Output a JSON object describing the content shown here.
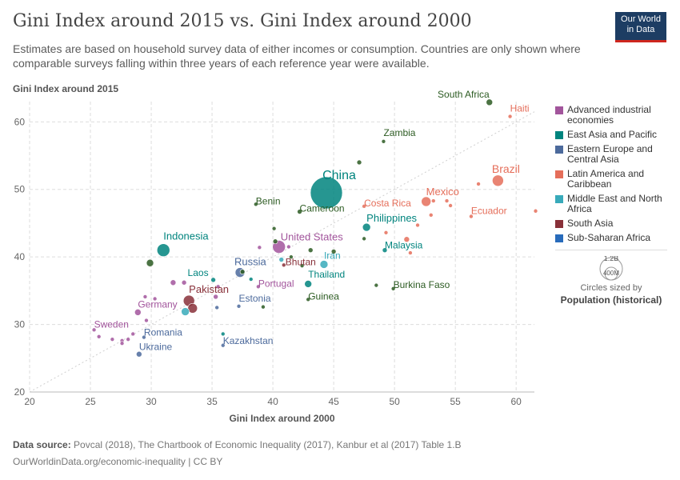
{
  "header": {
    "title": "Gini Index around 2015 vs. Gini Index around 2000",
    "subtitle": "Estimates are based on household survey data of either incomes or consumption. Countries are only shown where comparable surveys falling within three years of each reference year were available.",
    "logo_line1": "Our World",
    "logo_line2": "in Data"
  },
  "legend": {
    "items": [
      {
        "label": "Advanced industrial economies",
        "color": "#a2559c"
      },
      {
        "label": "East Asia and Pacific",
        "color": "#00847e"
      },
      {
        "label": "Eastern Europe and Central Asia",
        "color": "#4c6a9c"
      },
      {
        "label": "Latin America and Caribbean",
        "color": "#e56e5a"
      },
      {
        "label": "Middle East and North Africa",
        "color": "#38aaba"
      },
      {
        "label": "South Asia",
        "color": "#883039"
      },
      {
        "label": "Sub-Saharan Africa",
        "color": "#286bbb"
      }
    ],
    "size_big": "1.2B",
    "size_small": "400M",
    "size_caption": "Circles sized by",
    "size_metric": "Population (historical)"
  },
  "footer": {
    "source_label": "Data source:",
    "source_text": "Povcal (2018), The Chartbook of Economic Inequality (2017), Kanbur et al (2017) Table 1.B",
    "url": "OurWorldinData.org/economic-inequality | CC BY"
  },
  "chart_data": {
    "type": "scatter",
    "title": "Gini Index around 2015 vs. Gini Index around 2000",
    "xlabel": "Gini Index around 2000",
    "ylabel": "Gini Index around 2015",
    "xlim": [
      20,
      61.5
    ],
    "ylim": [
      20,
      63
    ],
    "xticks": [
      20,
      25,
      30,
      35,
      40,
      45,
      50,
      55,
      60
    ],
    "yticks": [
      20,
      30,
      40,
      50,
      60
    ],
    "diagonal": true,
    "region_colors": {
      "adv": "#a2559c",
      "eap": "#00847e",
      "eeca": "#4c6a9c",
      "lac": "#e56e5a",
      "mena": "#38aaba",
      "sa": "#883039",
      "ssa": "#2c5b22"
    },
    "points": [
      {
        "name": "South Africa",
        "x": 57.8,
        "y": 62.9,
        "region": "ssa",
        "r": 4,
        "label": "South Africa",
        "anchor": "end",
        "dx": 0,
        "dy": -6
      },
      {
        "name": "Haiti",
        "x": 59.5,
        "y": 60.8,
        "region": "lac",
        "r": 2.5,
        "label": "Haiti",
        "anchor": "start",
        "dx": 0,
        "dy": -6
      },
      {
        "name": "Zambia",
        "x": 49.1,
        "y": 57.1,
        "region": "ssa",
        "r": 2.5,
        "label": "Zambia",
        "anchor": "start",
        "dx": 0,
        "dy": -7
      },
      {
        "name": "",
        "x": 47.1,
        "y": 54.0,
        "region": "ssa",
        "r": 3
      },
      {
        "name": "China",
        "x": 44.4,
        "y": 49.5,
        "region": "eap",
        "r": 20,
        "label": "China",
        "anchor": "middle",
        "dx": 16,
        "dy": -17,
        "size": 16
      },
      {
        "name": "Brazil",
        "x": 58.5,
        "y": 51.3,
        "region": "lac",
        "r": 7,
        "label": "Brazil",
        "anchor": "middle",
        "dx": 10,
        "dy": -10,
        "size": 14
      },
      {
        "name": "",
        "x": 56.9,
        "y": 50.8,
        "region": "lac",
        "r": 2.5
      },
      {
        "name": "Mexico",
        "x": 52.6,
        "y": 48.2,
        "region": "lac",
        "r": 6,
        "label": "Mexico",
        "anchor": "start",
        "dx": 0,
        "dy": -8,
        "size": 13
      },
      {
        "name": "",
        "x": 53.2,
        "y": 48.3,
        "region": "lac",
        "r": 2.5
      },
      {
        "name": "",
        "x": 54.3,
        "y": 48.3,
        "region": "lac",
        "r": 2.5
      },
      {
        "name": "",
        "x": 54.6,
        "y": 47.6,
        "region": "lac",
        "r": 2.5
      },
      {
        "name": "",
        "x": 53.0,
        "y": 46.2,
        "region": "lac",
        "r": 2.5
      },
      {
        "name": "Ecuador",
        "x": 56.3,
        "y": 46.0,
        "region": "lac",
        "r": 2.5,
        "label": "Ecuador",
        "anchor": "start",
        "dx": 0,
        "dy": -3
      },
      {
        "name": "",
        "x": 61.6,
        "y": 46.8,
        "region": "lac",
        "r": 2.5
      },
      {
        "name": "Costa Rica",
        "x": 47.5,
        "y": 47.5,
        "region": "lac",
        "r": 2.5,
        "label": "Costa Rica",
        "anchor": "start",
        "dx": 0,
        "dy": 0
      },
      {
        "name": "Benin",
        "x": 38.6,
        "y": 47.8,
        "region": "ssa",
        "r": 2.5,
        "label": "Benin",
        "anchor": "start",
        "dx": 0,
        "dy": 0
      },
      {
        "name": "Cameroon",
        "x": 42.2,
        "y": 46.7,
        "region": "ssa",
        "r": 3,
        "label": "Cameroon",
        "anchor": "start",
        "dx": 0,
        "dy": 0
      },
      {
        "name": "Philippines",
        "x": 47.7,
        "y": 44.4,
        "region": "eap",
        "r": 5,
        "label": "Philippines",
        "anchor": "start",
        "dx": 0,
        "dy": -7,
        "size": 13
      },
      {
        "name": "",
        "x": 49.3,
        "y": 43.6,
        "region": "lac",
        "r": 2.5
      },
      {
        "name": "",
        "x": 51.9,
        "y": 44.7,
        "region": "lac",
        "r": 2.5
      },
      {
        "name": "",
        "x": 47.5,
        "y": 42.7,
        "region": "ssa",
        "r": 2.5
      },
      {
        "name": "",
        "x": 51.0,
        "y": 42.6,
        "region": "lac",
        "r": 3.5
      },
      {
        "name": "",
        "x": 51.3,
        "y": 40.6,
        "region": "lac",
        "r": 2.5
      },
      {
        "name": "Malaysia",
        "x": 49.2,
        "y": 41.0,
        "region": "eap",
        "r": 3,
        "label": "Malaysia",
        "anchor": "start",
        "dx": 0,
        "dy": -2
      },
      {
        "name": "",
        "x": 45.0,
        "y": 40.8,
        "region": "ssa",
        "r": 3
      },
      {
        "name": "",
        "x": 43.1,
        "y": 41.0,
        "region": "ssa",
        "r": 3
      },
      {
        "name": "",
        "x": 40.1,
        "y": 44.2,
        "region": "ssa",
        "r": 2.5
      },
      {
        "name": "",
        "x": 40.2,
        "y": 42.3,
        "region": "ssa",
        "r": 3
      },
      {
        "name": "United States",
        "x": 40.5,
        "y": 41.5,
        "region": "adv",
        "r": 8,
        "label": "United States",
        "anchor": "start",
        "dx": 2,
        "dy": -8,
        "size": 13
      },
      {
        "name": "",
        "x": 41.3,
        "y": 41.5,
        "region": "adv",
        "r": 2.5
      },
      {
        "name": "",
        "x": 38.9,
        "y": 41.4,
        "region": "adv",
        "r": 2.5
      },
      {
        "name": "",
        "x": 41.5,
        "y": 40.0,
        "region": "ssa",
        "r": 2.5
      },
      {
        "name": "Bhutan",
        "x": 40.9,
        "y": 38.8,
        "region": "sa",
        "r": 2.5,
        "label": "Bhutan",
        "anchor": "start",
        "dx": 2,
        "dy": 0
      },
      {
        "name": "",
        "x": 40.7,
        "y": 39.6,
        "region": "mena",
        "r": 3
      },
      {
        "name": "",
        "x": 42.4,
        "y": 38.7,
        "region": "ssa",
        "r": 2.5
      },
      {
        "name": "Iran",
        "x": 44.2,
        "y": 38.9,
        "region": "mena",
        "r": 5,
        "label": "Iran",
        "anchor": "start",
        "dx": 0,
        "dy": -7
      },
      {
        "name": "Indonesia",
        "x": 31.0,
        "y": 41.0,
        "region": "eap",
        "r": 8,
        "label": "Indonesia",
        "anchor": "start",
        "dx": 0,
        "dy": -13,
        "size": 13
      },
      {
        "name": "",
        "x": 29.9,
        "y": 39.1,
        "region": "ssa",
        "r": 4.5
      },
      {
        "name": "Russia",
        "x": 37.3,
        "y": 37.7,
        "region": "eeca",
        "r": 6,
        "label": "Russia",
        "anchor": "start",
        "dx": -7,
        "dy": -9,
        "size": 13
      },
      {
        "name": "",
        "x": 37.5,
        "y": 37.8,
        "region": "ssa",
        "r": 3
      },
      {
        "name": "Laos",
        "x": 35.1,
        "y": 36.6,
        "region": "eap",
        "r": 3,
        "label": "Laos",
        "anchor": "end",
        "dx": -6,
        "dy": -5
      },
      {
        "name": "",
        "x": 32.7,
        "y": 36.2,
        "region": "adv",
        "r": 3
      },
      {
        "name": "",
        "x": 31.8,
        "y": 36.2,
        "region": "adv",
        "r": 3.5
      },
      {
        "name": "",
        "x": 35.5,
        "y": 35.6,
        "region": "adv",
        "r": 2.5
      },
      {
        "name": "",
        "x": 38.2,
        "y": 36.7,
        "region": "eap",
        "r": 2.5
      },
      {
        "name": "Portugal",
        "x": 38.8,
        "y": 35.6,
        "region": "adv",
        "r": 2.5,
        "label": "Portugal",
        "anchor": "start",
        "dx": 0,
        "dy": 0
      },
      {
        "name": "Thailand",
        "x": 42.9,
        "y": 36.0,
        "region": "eap",
        "r": 4.5,
        "label": "Thailand",
        "anchor": "start",
        "dx": 0,
        "dy": -8
      },
      {
        "name": "Burkina Faso",
        "x": 49.9,
        "y": 35.3,
        "region": "ssa",
        "r": 2.5,
        "label": "Burkina Faso",
        "anchor": "start",
        "dx": 0,
        "dy": -1
      },
      {
        "name": "",
        "x": 48.5,
        "y": 35.8,
        "region": "ssa",
        "r": 2.5
      },
      {
        "name": "Guinea",
        "x": 42.9,
        "y": 33.7,
        "region": "ssa",
        "r": 2.5,
        "label": "Guinea",
        "anchor": "start",
        "dx": 0,
        "dy": 0
      },
      {
        "name": "Estonia",
        "x": 37.2,
        "y": 32.7,
        "region": "eeca",
        "r": 2.5,
        "label": "Estonia",
        "anchor": "start",
        "dx": 0,
        "dy": -6
      },
      {
        "name": "",
        "x": 39.2,
        "y": 32.6,
        "region": "ssa",
        "r": 2.5
      },
      {
        "name": "Pakistan",
        "x": 33.1,
        "y": 33.5,
        "region": "sa",
        "r": 7,
        "label": "Pakistan",
        "anchor": "start",
        "dx": 0,
        "dy": -10,
        "size": 13
      },
      {
        "name": "",
        "x": 33.4,
        "y": 32.4,
        "region": "sa",
        "r": 6
      },
      {
        "name": "",
        "x": 32.8,
        "y": 31.9,
        "region": "mena",
        "r": 5
      },
      {
        "name": "",
        "x": 35.3,
        "y": 34.1,
        "region": "adv",
        "r": 3
      },
      {
        "name": "",
        "x": 35.4,
        "y": 32.5,
        "region": "eeca",
        "r": 2.5
      },
      {
        "name": "Germany",
        "x": 28.9,
        "y": 31.8,
        "region": "adv",
        "r": 4,
        "label": "Germany",
        "anchor": "start",
        "dx": 0,
        "dy": -6
      },
      {
        "name": "",
        "x": 29.5,
        "y": 34.1,
        "region": "adv",
        "r": 2.5
      },
      {
        "name": "",
        "x": 30.3,
        "y": 33.8,
        "region": "adv",
        "r": 2.5
      },
      {
        "name": "",
        "x": 29.6,
        "y": 30.6,
        "region": "adv",
        "r": 2.5
      },
      {
        "name": "",
        "x": 28.5,
        "y": 28.6,
        "region": "adv",
        "r": 2.5
      },
      {
        "name": "Sweden",
        "x": 25.3,
        "y": 29.2,
        "region": "adv",
        "r": 2.5,
        "label": "Sweden",
        "anchor": "start",
        "dx": 0,
        "dy": -3
      },
      {
        "name": "",
        "x": 25.7,
        "y": 28.2,
        "region": "adv",
        "r": 2.5
      },
      {
        "name": "",
        "x": 26.8,
        "y": 27.8,
        "region": "adv",
        "r": 2.5
      },
      {
        "name": "",
        "x": 27.6,
        "y": 27.6,
        "region": "adv",
        "r": 2.5
      },
      {
        "name": "",
        "x": 28.1,
        "y": 27.8,
        "region": "adv",
        "r": 2.5
      },
      {
        "name": "",
        "x": 27.6,
        "y": 27.2,
        "region": "adv",
        "r": 2.5
      },
      {
        "name": "Romania",
        "x": 29.4,
        "y": 28.1,
        "region": "eeca",
        "r": 2.5,
        "label": "Romania",
        "anchor": "start",
        "dx": 0,
        "dy": -2
      },
      {
        "name": "Ukraine",
        "x": 29.0,
        "y": 25.6,
        "region": "eeca",
        "r": 3.5,
        "label": "Ukraine",
        "anchor": "start",
        "dx": 0,
        "dy": -5
      },
      {
        "name": "Kazakhstan",
        "x": 35.9,
        "y": 26.9,
        "region": "eeca",
        "r": 2.5,
        "label": "Kazakhstan",
        "anchor": "start",
        "dx": 0,
        "dy": -2
      },
      {
        "name": "",
        "x": 35.9,
        "y": 28.6,
        "region": "eap",
        "r": 2.5
      }
    ]
  }
}
